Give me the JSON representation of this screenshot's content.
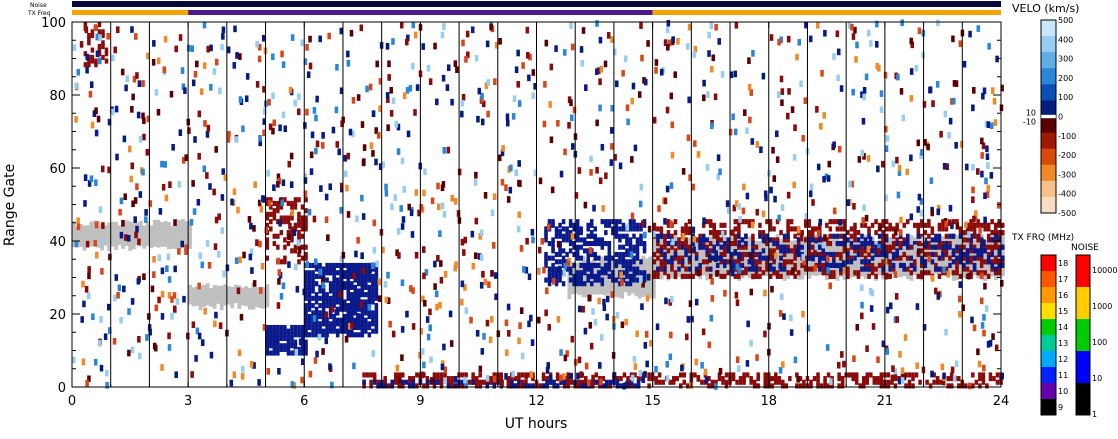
{
  "chart_data": {
    "type": "heatmap",
    "title": "",
    "xlabel": "UT hours",
    "ylabel": "Range Gate",
    "xlim": [
      0,
      24
    ],
    "ylim": [
      0,
      100
    ],
    "x_ticks": [
      "0",
      "3",
      "6",
      "9",
      "12",
      "15",
      "18",
      "21",
      "24"
    ],
    "y_ticks": [
      "0",
      "20",
      "40",
      "60",
      "80",
      "100"
    ],
    "top_bars": {
      "noise_label": "Noise",
      "txfreq_label": "TX Freq",
      "txfreq_segments": [
        {
          "from": 0,
          "to": 3,
          "color": "#f5a300"
        },
        {
          "from": 3,
          "to": 15,
          "color": "#4a1a8c"
        },
        {
          "from": 15,
          "to": 24,
          "color": "#f5a300"
        }
      ]
    },
    "velocity_colorbar": {
      "title": "VELO (km/s)",
      "ticks": [
        "500",
        "400",
        "300",
        "200",
        "100",
        "0",
        "-100",
        "-200",
        "-300",
        "-400",
        "-500"
      ],
      "side_labels": [
        "10",
        "-10"
      ],
      "colors": [
        "#c8e6fa",
        "#96cdf0",
        "#5faee6",
        "#2a86d8",
        "#0a4fb4",
        "#001c7c",
        "#5a0000",
        "#a01800",
        "#d84a0a",
        "#f08a28",
        "#f6c08a",
        "#f8dcc4"
      ]
    },
    "freq_colorbar": {
      "title": "TX FRQ (MHz)",
      "ticks": [
        "18",
        "17",
        "16",
        "15",
        "14",
        "13",
        "12",
        "11",
        "10",
        "9"
      ],
      "colors": [
        "#ff0000",
        "#ff5500",
        "#ff9900",
        "#ffdd00",
        "#00cc00",
        "#00cc99",
        "#00aaff",
        "#0022ff",
        "#6600aa",
        "#000000"
      ]
    },
    "noise_colorbar": {
      "title": "NOISE",
      "ticks": [
        "10000",
        "1000",
        "100",
        "10",
        "1"
      ],
      "colors": [
        "#ff0000",
        "#ffcc00",
        "#00cc00",
        "#0000ff",
        "#000000"
      ]
    },
    "ground_scatter_color": "#c0c0c0",
    "ground_scatter_bands": [
      {
        "t0": 0.0,
        "t1": 3.0,
        "g0": 37,
        "g1": 46
      },
      {
        "t0": 3.0,
        "t1": 5.0,
        "g0": 21,
        "g1": 29
      },
      {
        "t0": 12.8,
        "t1": 15.0,
        "g0": 24,
        "g1": 36
      },
      {
        "t0": 15.0,
        "t1": 24.0,
        "g0": 29,
        "g1": 42
      }
    ],
    "scatter_regions": [
      {
        "t0": 5.0,
        "t1": 6.0,
        "g0": 9,
        "g1": 17,
        "color": "#0a1a8c",
        "density": 0.85
      },
      {
        "t0": 6.0,
        "t1": 7.9,
        "g0": 14,
        "g1": 34,
        "color": "#0a1a8c",
        "density": 0.8
      },
      {
        "t0": 5.0,
        "t1": 6.0,
        "g0": 34,
        "g1": 52,
        "color": "#8b0a0a",
        "density": 0.45
      },
      {
        "t0": 12.2,
        "t1": 14.8,
        "g0": 28,
        "g1": 46,
        "color": "#0a1a8c",
        "density": 0.55
      },
      {
        "t0": 15.0,
        "t1": 24.0,
        "g0": 30,
        "g1": 46,
        "color": "#8b0a0a",
        "density": 0.4
      },
      {
        "t0": 15.0,
        "t1": 24.0,
        "g0": 32,
        "g1": 42,
        "color": "#0a1a8c",
        "density": 0.25
      },
      {
        "t0": 7.5,
        "t1": 24.0,
        "g0": 0,
        "g1": 4,
        "color": "#8b0a0a",
        "density": 0.5
      },
      {
        "t0": 7.5,
        "t1": 15.0,
        "g0": 0,
        "g1": 2,
        "color": "#0a1a8c",
        "density": 0.35
      },
      {
        "t0": 0.3,
        "t1": 0.9,
        "g0": 88,
        "g1": 100,
        "color": "#8b0a0a",
        "density": 0.35
      }
    ],
    "random_noise_colors": [
      "#0a1a8c",
      "#8b0a0a",
      "#d8461a",
      "#f08a28",
      "#2a86d8",
      "#96cdf0",
      "#5a0000",
      "#001c7c"
    ]
  }
}
